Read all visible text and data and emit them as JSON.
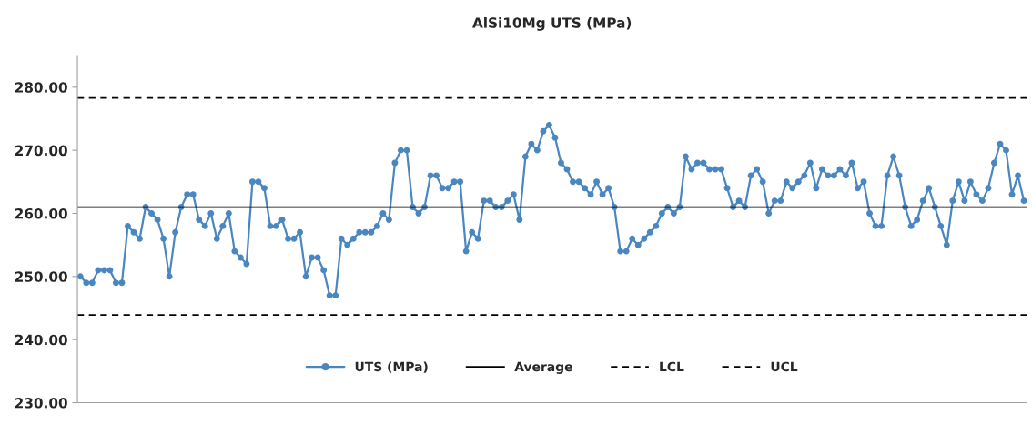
{
  "chart_data": {
    "type": "line",
    "title": "AlSi10Mg UTS (MPa)",
    "categories": [
      null,
      null,
      null,
      null,
      null,
      null,
      null,
      null,
      null,
      null,
      null,
      null,
      null,
      null,
      null,
      null,
      null,
      null,
      null,
      null,
      null,
      null,
      null,
      null,
      null,
      null,
      null,
      null,
      null,
      null,
      null,
      null,
      null,
      null,
      null,
      null,
      null,
      null,
      null,
      null,
      null,
      null,
      null,
      null,
      null,
      null,
      null,
      null,
      null,
      null,
      null,
      null,
      null,
      null,
      null,
      null,
      null,
      null,
      null,
      null,
      null,
      null,
      null,
      null,
      null,
      null,
      null,
      null,
      null,
      null,
      null,
      null,
      null,
      null,
      null,
      null,
      null,
      null,
      null,
      null,
      null,
      null,
      null,
      null,
      null,
      null,
      null,
      null,
      null,
      null,
      null,
      null,
      null,
      null,
      null,
      null,
      null,
      null,
      null,
      null,
      null,
      null,
      null,
      null,
      null,
      null,
      null,
      null,
      null,
      null,
      null,
      null,
      null,
      null,
      null,
      null,
      null,
      null,
      null,
      null,
      null,
      null,
      null,
      null,
      null,
      null,
      null,
      null,
      null,
      null,
      null,
      null,
      null,
      null,
      null,
      null,
      null,
      null,
      null,
      null,
      null,
      null,
      null,
      null,
      null,
      null,
      null,
      null,
      null,
      null,
      null,
      null,
      null,
      null,
      null,
      null,
      null,
      null,
      null,
      null
    ],
    "series": [
      {
        "name": "UTS (MPa)",
        "color": "#4a86c0",
        "values": [
          250,
          249,
          249,
          251,
          251,
          251,
          249,
          249,
          258,
          257,
          256,
          261,
          260,
          259,
          256,
          250,
          257,
          261,
          263,
          263,
          259,
          258,
          260,
          256,
          258,
          260,
          254,
          253,
          252,
          265,
          265,
          264,
          258,
          258,
          259,
          256,
          256,
          257,
          250,
          253,
          253,
          251,
          247,
          247,
          256,
          255,
          256,
          257,
          257,
          257,
          258,
          260,
          259,
          268,
          270,
          270,
          261,
          260,
          261,
          266,
          266,
          264,
          264,
          265,
          265,
          254,
          257,
          256,
          262,
          262,
          261,
          261,
          262,
          263,
          259,
          269,
          271,
          270,
          273,
          274,
          272,
          268,
          267,
          265,
          265,
          264,
          263,
          265,
          263,
          264,
          261,
          254,
          254,
          256,
          255,
          256,
          257,
          258,
          260,
          261,
          260,
          261,
          269,
          267,
          268,
          268,
          267,
          267,
          267,
          264,
          261,
          262,
          261,
          266,
          267,
          265,
          260,
          262,
          262,
          265,
          264,
          265,
          266,
          268,
          264,
          267,
          266,
          266,
          267,
          266,
          268,
          264,
          265,
          260,
          258,
          258,
          266,
          269,
          266,
          261,
          258,
          259,
          262,
          264,
          261,
          258,
          255,
          262,
          265,
          262,
          265,
          263,
          262,
          264,
          268,
          271,
          270,
          263,
          266,
          262
        ]
      }
    ],
    "ref_lines": [
      {
        "axis": "y",
        "value": 261.0,
        "label": "Average",
        "color": "#000000",
        "line_style": "solid"
      },
      {
        "axis": "y",
        "value": 243.9,
        "label": "LCL",
        "color": "#000000",
        "line_style": "dashed"
      },
      {
        "axis": "y",
        "value": 278.3,
        "label": "UCL",
        "color": "#000000",
        "line_style": "dashed"
      }
    ],
    "marker": "circle",
    "line_style": "solid",
    "ylim": [
      230,
      285
    ],
    "yticks": [
      {
        "value": 230,
        "label": "230.00"
      },
      {
        "value": 240,
        "label": "240.00"
      },
      {
        "value": 250,
        "label": "250.00"
      },
      {
        "value": 260,
        "label": "260.00"
      },
      {
        "value": 270,
        "label": "270.00"
      },
      {
        "value": 280,
        "label": "280.00"
      }
    ],
    "tick_labels": "y",
    "grid": false,
    "legend": "bottom"
  }
}
